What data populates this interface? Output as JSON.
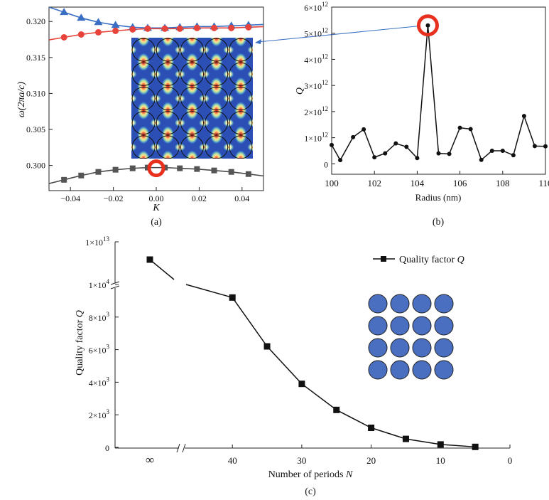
{
  "figure": {
    "caption_a": "(a)",
    "caption_b": "(b)",
    "caption_c": "(c)"
  },
  "colors": {
    "blue_band": "#3a6fc4",
    "red_band": "#e8433a",
    "dark_band": "#4a4a4a",
    "highlight": "#e8301f",
    "dot_fill": "#4a6fc0",
    "link_line": "#3b6fc2"
  },
  "chart_data": [
    {
      "id": "a",
      "type": "line",
      "title": "",
      "xlabel": "K",
      "ylabel": "ω(2πa/c)",
      "xlim": [
        -0.05,
        0.05
      ],
      "ylim": [
        0.2965,
        0.322
      ],
      "xticks": [
        -0.04,
        -0.02,
        0.0,
        0.02,
        0.04
      ],
      "xtick_labels": [
        "−0.04",
        "−0.02",
        "0.00",
        "0.02",
        "0.04"
      ],
      "yticks": [
        0.3,
        0.305,
        0.31,
        0.315,
        0.32
      ],
      "ytick_labels": [
        "0.300",
        "0.305",
        "0.310",
        "0.315",
        "0.320"
      ],
      "series": [
        {
          "name": "upper band",
          "marker": "triangle",
          "x": [
            -0.043,
            -0.035,
            -0.027,
            -0.019,
            -0.011,
            -0.004,
            0.004,
            0.011,
            0.019,
            0.027,
            0.035,
            0.043
          ],
          "y": [
            0.3213,
            0.3205,
            0.3199,
            0.3195,
            0.3192,
            0.3191,
            0.3191,
            0.3192,
            0.3193,
            0.3193,
            0.3194,
            0.3195
          ]
        },
        {
          "name": "middle band",
          "marker": "circle",
          "x": [
            -0.043,
            -0.035,
            -0.027,
            -0.019,
            -0.011,
            -0.004,
            0.004,
            0.011,
            0.019,
            0.027,
            0.035,
            0.043
          ],
          "y": [
            0.3178,
            0.3182,
            0.3185,
            0.3187,
            0.3189,
            0.319,
            0.319,
            0.319,
            0.3191,
            0.3191,
            0.3191,
            0.3192
          ]
        },
        {
          "name": "lower band",
          "marker": "square",
          "x": [
            -0.043,
            -0.035,
            -0.027,
            -0.019,
            -0.011,
            -0.004,
            0.004,
            0.011,
            0.019,
            0.027,
            0.035,
            0.043
          ],
          "y": [
            0.298,
            0.2986,
            0.2991,
            0.2994,
            0.2996,
            0.2997,
            0.2997,
            0.2996,
            0.2995,
            0.2993,
            0.2991,
            0.2988
          ]
        }
      ],
      "annotation": {
        "type": "circle-highlight",
        "x": 0.0,
        "y": 0.2996
      }
    },
    {
      "id": "b",
      "type": "line",
      "title": "",
      "xlabel": "Radius (nm)",
      "ylabel": "Q",
      "xlim": [
        100,
        110
      ],
      "ylim": [
        -0.4,
        6.0
      ],
      "y_exponent": "×10^12",
      "xticks": [
        100,
        102,
        104,
        106,
        108,
        110
      ],
      "xtick_labels": [
        "100",
        "102",
        "104",
        "106",
        "108",
        "110"
      ],
      "yticks": [
        0,
        1,
        2,
        3,
        4,
        5,
        6
      ],
      "ytick_base": [
        "0",
        "1×10",
        "2×10",
        "3×10",
        "4×10",
        "5×10",
        "6×10"
      ],
      "ytick_exp": [
        "",
        "12",
        "12",
        "12",
        "12",
        "12",
        "12"
      ],
      "series": [
        {
          "name": "Q vs radius",
          "x": [
            100.0,
            100.4,
            101.0,
            101.5,
            102.0,
            102.5,
            103.0,
            103.5,
            104.0,
            104.5,
            105.0,
            105.5,
            106.0,
            106.5,
            107.0,
            107.5,
            108.0,
            108.5,
            109.0,
            109.5,
            110.0
          ],
          "y": [
            0.72,
            0.14,
            1.02,
            1.32,
            0.25,
            0.4,
            0.78,
            0.65,
            0.22,
            5.3,
            0.4,
            0.38,
            1.38,
            1.33,
            0.15,
            0.5,
            0.5,
            0.33,
            1.83,
            0.68,
            0.67
          ]
        }
      ],
      "annotation": {
        "type": "circle-highlight",
        "x": 104.5,
        "y": 5.3
      }
    },
    {
      "id": "c",
      "type": "line",
      "title": "",
      "xlabel": "Number of  periods N",
      "ylabel": "Quality factor Q",
      "legend": "Quality factor Q",
      "xticks_labels": [
        "∞",
        "40",
        "30",
        "20",
        "10",
        "0"
      ],
      "y_axis_break": true,
      "ytick_base": [
        "0",
        "2×10",
        "4×10",
        "6×10",
        "8×10",
        "1×10",
        "1×10"
      ],
      "ytick_exp": [
        "",
        "3",
        "3",
        "3",
        "3",
        "4",
        "13"
      ],
      "ylim": [
        0,
        10000
      ],
      "series": [
        {
          "name": "Quality factor Q",
          "x": [
            "∞",
            40,
            35,
            30,
            25,
            20,
            15,
            10,
            5
          ],
          "y": [
            10000000000000,
            9200,
            6200,
            3900,
            2300,
            1200,
            520,
            180,
            30
          ]
        }
      ]
    }
  ]
}
